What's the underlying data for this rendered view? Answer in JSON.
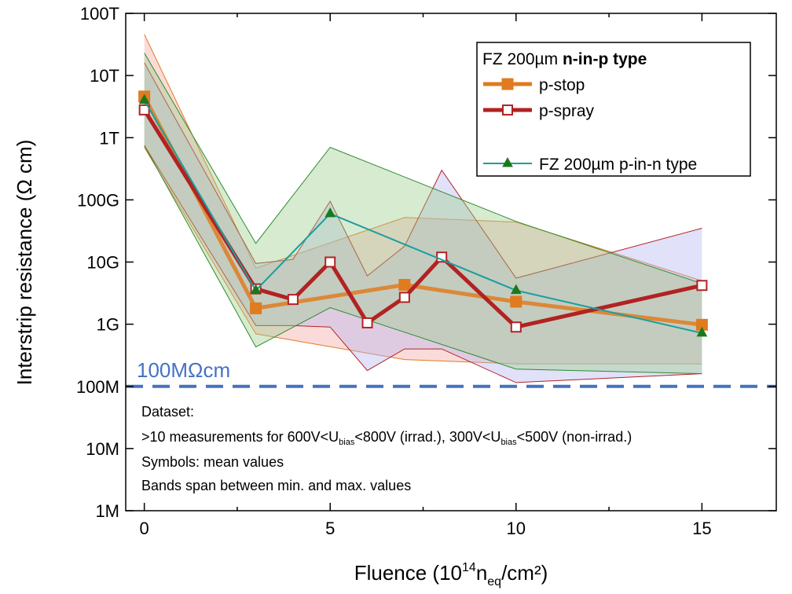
{
  "chart_data": {
    "type": "line",
    "xlabel": {
      "main": "Fluence (10",
      "sup": "14",
      "mid": "n",
      "sub": "eq",
      "end": "/cm²)"
    },
    "ylabel": "Interstrip resistance (Ω cm)",
    "xlim": [
      -0.5,
      17
    ],
    "ylim": [
      1000000.0,
      100000000000000.0
    ],
    "yscale": "log",
    "x_ticks": [
      0,
      5,
      10,
      15
    ],
    "y_ticks": [
      {
        "value": 1000000.0,
        "label": "1M"
      },
      {
        "value": 10000000.0,
        "label": "10M"
      },
      {
        "value": 100000000.0,
        "label": "100M"
      },
      {
        "value": 1000000000.0,
        "label": "1G"
      },
      {
        "value": 10000000000.0,
        "label": "10G"
      },
      {
        "value": 100000000000.0,
        "label": "100G"
      },
      {
        "value": 1000000000000.0,
        "label": "1T"
      },
      {
        "value": 10000000000000.0,
        "label": "10T"
      },
      {
        "value": 100000000000000.0,
        "label": "100T"
      }
    ],
    "threshold": {
      "value": 100000000.0,
      "label": "100MΩcm",
      "color": "#4472c4"
    },
    "legend": {
      "position": "top-right",
      "title": {
        "normal": "FZ 200µm ",
        "bold": "n-in-p type"
      },
      "entries": [
        "p-stop",
        "p-spray",
        "FZ 200µm p-in-n type"
      ]
    },
    "series": [
      {
        "name": "p-stop",
        "color": "#e07b20",
        "band_fill": "#f4a6a0",
        "marker": "filled-square",
        "x": [
          0,
          3,
          7,
          10,
          15
        ],
        "values": [
          4600000000000.0,
          1800000000.0,
          4300000000.0,
          2300000000.0,
          980000000.0
        ],
        "max": [
          46000000000000.0,
          8000000000.0,
          52000000000.0,
          44000000000.0,
          5000000000.0
        ],
        "min": [
          700000000000.0,
          700000000.0,
          270000000.0,
          230000000.0,
          230000000.0
        ]
      },
      {
        "name": "p-spray",
        "color": "#b22222",
        "band_fill": "#b4b4f0",
        "marker": "open-square",
        "x": [
          0,
          3,
          4,
          5,
          6,
          7,
          8,
          10,
          15
        ],
        "values": [
          2800000000000.0,
          3700000000.0,
          2500000000.0,
          10000000000.0,
          1050000000.0,
          2700000000.0,
          12000000000.0,
          900000000.0,
          4200000000.0
        ],
        "max": [
          16000000000000.0,
          9500000000.0,
          11000000000.0,
          95000000000.0,
          6000000000.0,
          18000000000.0,
          300000000000.0,
          5500000000.0,
          35000000000.0
        ],
        "min": [
          750000000000.0,
          950000000.0,
          950000000.0,
          900000000.0,
          180000000.0,
          400000000.0,
          400000000.0,
          115000000.0,
          160000000.0
        ]
      },
      {
        "name": "FZ 200µm p-in-n type",
        "color": "#1a9e9e",
        "band_fill": "#9ccc8c",
        "band_edge": "#2e8b2e",
        "marker": "filled-triangle",
        "marker_color": "#1a7a1a",
        "x": [
          0,
          3,
          5,
          10,
          15
        ],
        "values": [
          4000000000000.0,
          3500000000.0,
          60000000000.0,
          3500000000.0,
          720000000.0
        ],
        "max": [
          23000000000000.0,
          20000000000.0,
          700000000000.0,
          45000000000.0,
          4500000000.0
        ],
        "min": [
          750000000000.0,
          430000000.0,
          1850000000.0,
          190000000.0,
          160000000.0
        ]
      }
    ],
    "annotations": [
      {
        "key": "dataset",
        "parts": [
          {
            "t": "Dataset:"
          }
        ]
      },
      {
        "key": "measurements",
        "parts": [
          {
            "t": ">10 measurements for 600V<U"
          },
          {
            "t": "bias",
            "sub": true
          },
          {
            "t": "<800V (irrad.), 300V<U"
          },
          {
            "t": "bias",
            "sub": true
          },
          {
            "t": "<500V (non-irrad.)"
          }
        ]
      },
      {
        "key": "symbols",
        "parts": [
          {
            "t": "Symbols: mean values"
          }
        ]
      },
      {
        "key": "bands",
        "parts": [
          {
            "t": "Bands span between min. and max. values"
          }
        ]
      }
    ]
  }
}
